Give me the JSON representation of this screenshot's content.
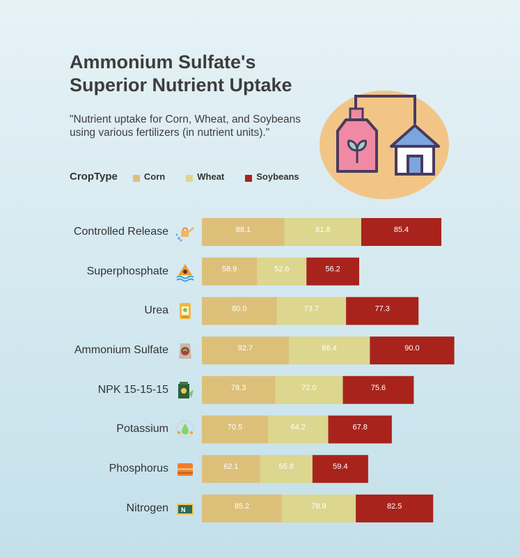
{
  "title_line1": "Ammonium Sulfate's",
  "title_line2": "Superior Nutrient Uptake",
  "subtitle": "\"Nutrient uptake for Corn, Wheat, and Soybeans using various fertilizers (in nutrient units).\"",
  "legend_title": "CropType",
  "colors": {
    "Corn": "#dcc07a",
    "Wheat": "#dcd68e",
    "Soybeans": "#a8231c"
  },
  "icons": [
    "watering-can-icon",
    "water-hazard-icon",
    "fertilizer-bag-icon",
    "soil-bag-icon",
    "fertilizer-box-icon",
    "potassium-drop-icon",
    "phosphorus-box-icon",
    "nitrogen-sign-icon",
    "fertilizer-house-illustration"
  ],
  "chart_data": {
    "type": "bar",
    "orientation": "horizontal",
    "stacked": true,
    "categories": [
      "Controlled Release",
      "Superphosphate",
      "Urea",
      "Ammonium Sulfate",
      "NPK 15-15-15",
      "Potassium",
      "Phosphorus",
      "Nitrogen"
    ],
    "series": [
      {
        "name": "Corn",
        "values": [
          88.1,
          58.9,
          80.0,
          92.7,
          78.3,
          70.5,
          62.1,
          85.2
        ]
      },
      {
        "name": "Wheat",
        "values": [
          81.8,
          52.6,
          73.7,
          86.4,
          72.0,
          64.2,
          55.8,
          78.9
        ]
      },
      {
        "name": "Soybeans",
        "values": [
          85.4,
          56.2,
          77.3,
          90.0,
          75.6,
          67.8,
          59.4,
          82.5
        ]
      }
    ],
    "grid": false,
    "legend_position": "top-left"
  }
}
